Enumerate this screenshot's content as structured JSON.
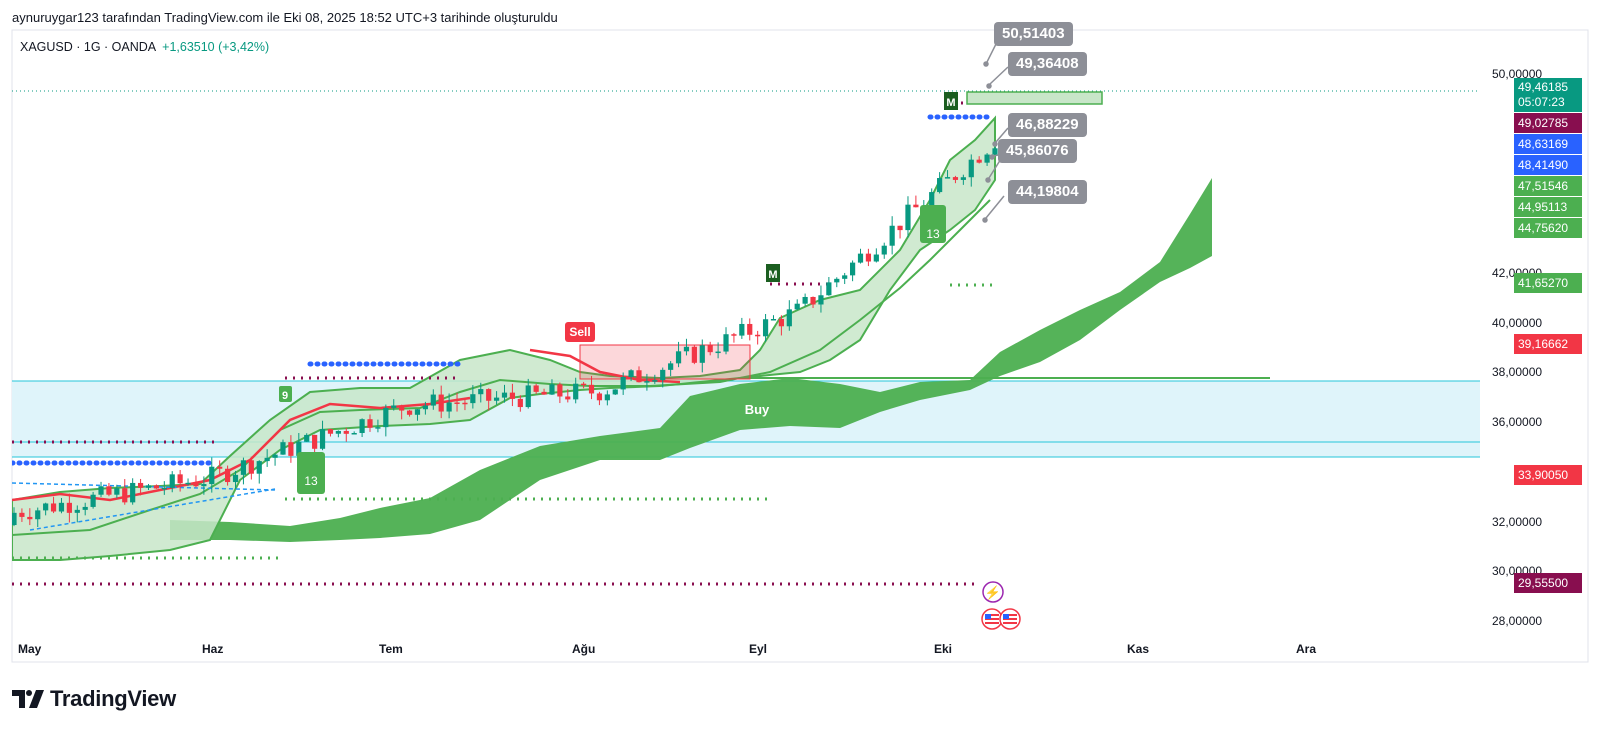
{
  "caption": "aynuruygar123 tarafından TradingView.com ile Eki 08, 2025 18:52 UTC+3 tarihinde oluşturuldu",
  "symbol": {
    "text": "XAGUSD · 1G · OANDA",
    "change": "+1,63510 (+3,42%)"
  },
  "brand": "TradingView",
  "colors": {
    "up": "#089981",
    "down": "#f23645",
    "cloud": "#4caf50",
    "channel_fill": "#c8e6c9",
    "cyan_zone": "#dff4fa",
    "maroon_dots": "#880e4f",
    "blue_dots": "#2962ff",
    "callout": "#8d8f97"
  },
  "chart_data": {
    "type": "line",
    "title": "XAGUSD · 1G · OANDA",
    "ylim": [
      27.5,
      51.3
    ],
    "x_ticks": [
      "May",
      "Haz",
      "Tem",
      "Ağu",
      "Eyl",
      "Eki",
      "Kas",
      "Ara"
    ],
    "y_ticks": [
      "28,00000",
      "30,00000",
      "32,00000",
      "36,00000",
      "38,00000",
      "40,00000",
      "42,00000",
      "50,00000"
    ],
    "series": [
      {
        "x": [
          "May",
          "Haz",
          "Tem",
          "Ağu",
          "Eyl",
          "Eki"
        ],
        "values": [
          32.4,
          33.8,
          36.7,
          37.3,
          40.5,
          47.4
        ]
      }
    ],
    "price_labels": [
      {
        "text": "49,46185",
        "sub": "05:07:23",
        "value": 49.46185,
        "color": "#089981"
      },
      {
        "text": "49,02785",
        "value": 49.02785,
        "color": "#880e4f"
      },
      {
        "text": "48,63169",
        "value": 48.63169,
        "color": "#2962ff"
      },
      {
        "text": "48,41490",
        "value": 48.4149,
        "color": "#2962ff"
      },
      {
        "text": "47,51546",
        "value": 47.51546,
        "color": "#4caf50"
      },
      {
        "text": "44,95113",
        "value": 44.95113,
        "color": "#4caf50"
      },
      {
        "text": "44,75620",
        "value": 44.7562,
        "color": "#4caf50"
      },
      {
        "text": "41,65270",
        "value": 41.6527,
        "color": "#4caf50"
      },
      {
        "text": "39,16662",
        "value": 39.16662,
        "color": "#f23645"
      },
      {
        "text": "33,90050",
        "value": 33.9005,
        "color": "#f23645"
      },
      {
        "text": "29,55500",
        "value": 29.555,
        "color": "#880e4f"
      }
    ],
    "callouts": [
      "50,51403",
      "49,36408",
      "46,88229",
      "45,86076",
      "44,19804"
    ],
    "annotations": [
      "Sell",
      "Buy"
    ]
  }
}
